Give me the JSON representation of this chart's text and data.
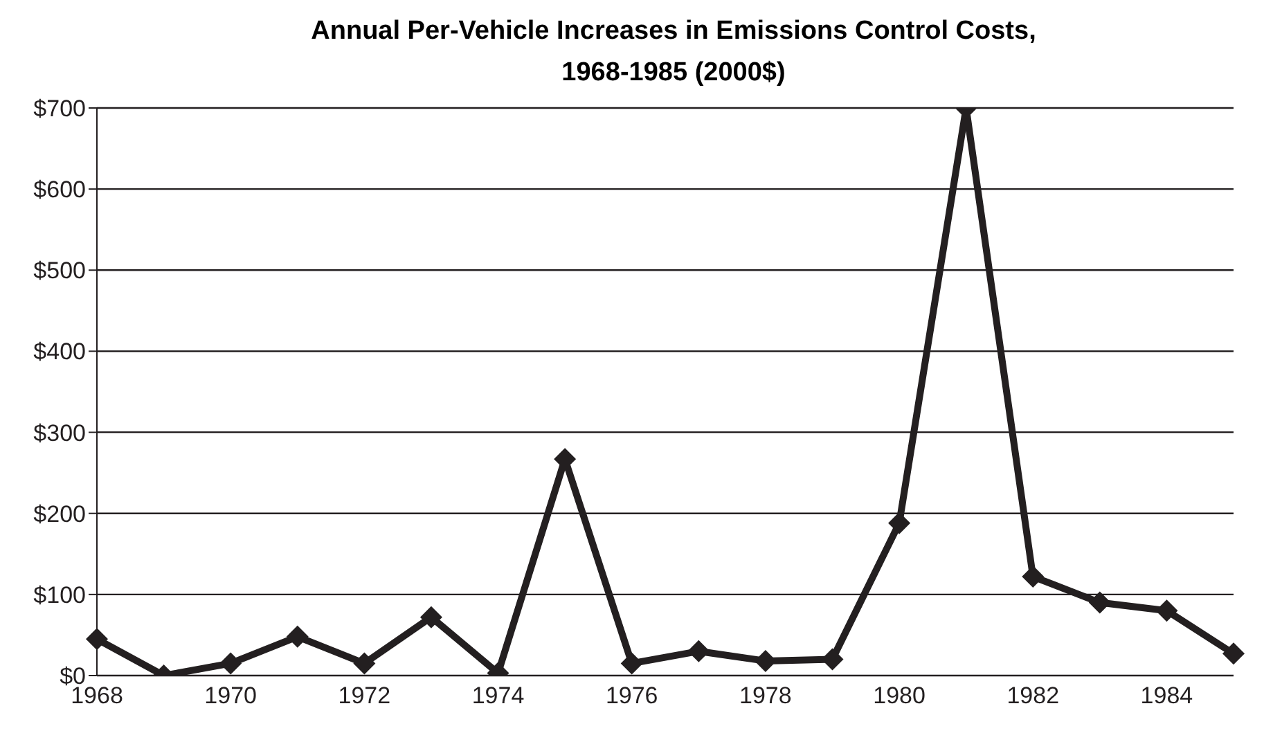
{
  "chart_data": {
    "type": "line",
    "title": "Annual Per-Vehicle Increases in Emissions Control Costs,\n1968-1985 (2000$)",
    "categories": [
      "1968",
      null,
      "1970",
      null,
      "1972",
      null,
      "1974",
      null,
      "1976",
      null,
      "1978",
      null,
      "1980",
      null,
      "1982",
      null,
      "1984",
      null
    ],
    "series": [
      {
        "color": "#231f20",
        "values": [
          45,
          0,
          15,
          48,
          15,
          72,
          3,
          267,
          15,
          30,
          18,
          20,
          188,
          700,
          122,
          90,
          80,
          27
        ]
      }
    ],
    "ylim": [
      0,
      700
    ],
    "yticks": [
      {
        "value": 0,
        "label": "$0"
      },
      {
        "value": 100,
        "label": "$100"
      },
      {
        "value": 200,
        "label": "$200"
      },
      {
        "value": 300,
        "label": "$300"
      },
      {
        "value": 400,
        "label": "$400"
      },
      {
        "value": 500,
        "label": "$500"
      },
      {
        "value": 600,
        "label": "$600"
      },
      {
        "value": 700,
        "label": "$700"
      }
    ],
    "grid": "y",
    "marker": "diamond",
    "line_style": "solid"
  }
}
